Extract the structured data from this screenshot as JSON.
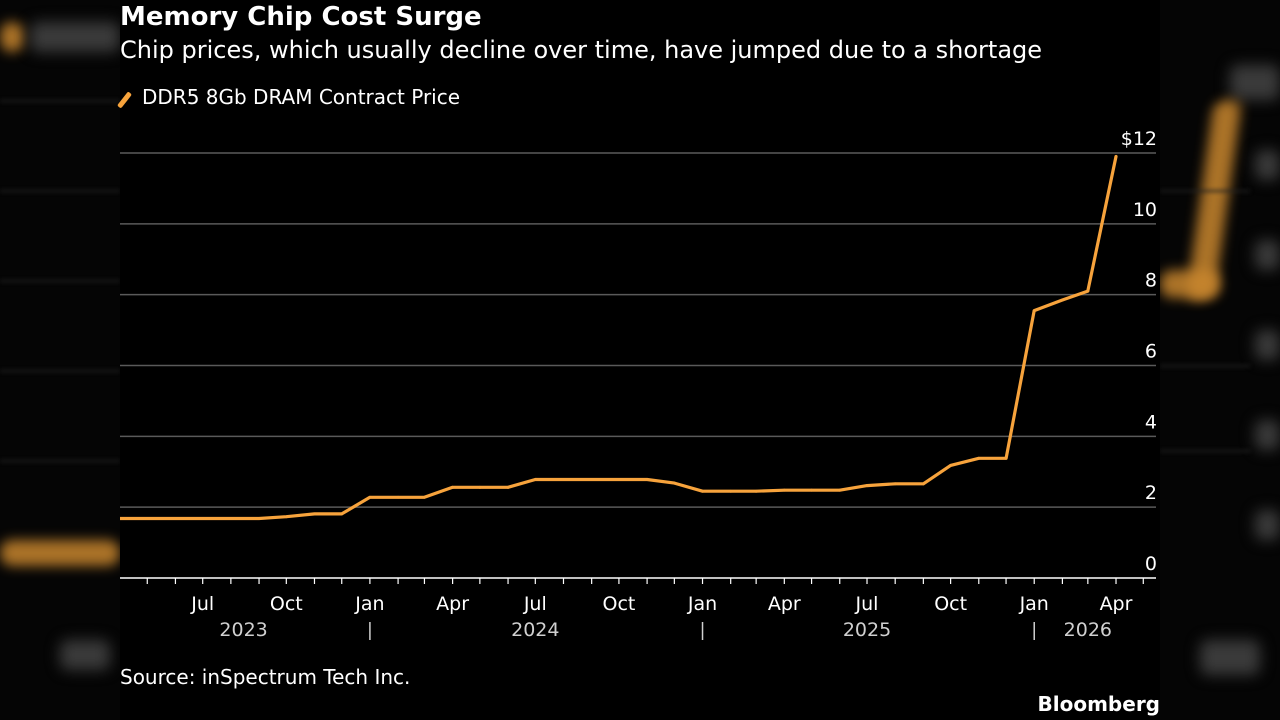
{
  "chart_data": {
    "type": "line",
    "title": "Memory Chip Cost Surge",
    "subtitle": "Chip prices, which usually decline over time, have jumped due to a shortage",
    "source": "Source: inSpectrum Tech Inc.",
    "brand": "Bloomberg",
    "ylim": [
      0,
      12
    ],
    "y_ticks": [
      {
        "value": 12,
        "label": "$12"
      },
      {
        "value": 10,
        "label": "10"
      },
      {
        "value": 8,
        "label": "8"
      },
      {
        "value": 6,
        "label": "6"
      },
      {
        "value": 4,
        "label": "4"
      },
      {
        "value": 2,
        "label": "2"
      },
      {
        "value": 0,
        "label": "0"
      }
    ],
    "xlim": [
      "2023-04-01",
      "2026-05-15"
    ],
    "x_month_ticks": [
      {
        "date": "2023-07-01",
        "label": "Jul"
      },
      {
        "date": "2023-10-01",
        "label": "Oct"
      },
      {
        "date": "2024-01-01",
        "label": "Jan"
      },
      {
        "date": "2024-04-01",
        "label": "Apr"
      },
      {
        "date": "2024-07-01",
        "label": "Jul"
      },
      {
        "date": "2024-10-01",
        "label": "Oct"
      },
      {
        "date": "2025-01-01",
        "label": "Jan"
      },
      {
        "date": "2025-04-01",
        "label": "Apr"
      },
      {
        "date": "2025-07-01",
        "label": "Jul"
      },
      {
        "date": "2025-10-01",
        "label": "Oct"
      },
      {
        "date": "2026-01-01",
        "label": "Jan"
      },
      {
        "date": "2026-04-01",
        "label": "Apr"
      }
    ],
    "x_year_labels": [
      {
        "date": "2023-08-15",
        "label": "2023"
      },
      {
        "date": "2024-07-01",
        "label": "2024"
      },
      {
        "date": "2025-07-01",
        "label": "2025"
      },
      {
        "date": "2026-03-01",
        "label": "2026"
      }
    ],
    "year_separators": [
      "2024-01-01",
      "2025-01-01",
      "2026-01-01"
    ],
    "grid": true,
    "legend_position": "top-left",
    "series": [
      {
        "name": "DDR5 8Gb DRAM Contract Price",
        "color": "#f7a33c",
        "points": [
          {
            "x": "2023-04-01",
            "y": 1.68
          },
          {
            "x": "2023-05-01",
            "y": 1.68
          },
          {
            "x": "2023-06-01",
            "y": 1.68
          },
          {
            "x": "2023-07-01",
            "y": 1.68
          },
          {
            "x": "2023-08-01",
            "y": 1.68
          },
          {
            "x": "2023-09-01",
            "y": 1.68
          },
          {
            "x": "2023-10-01",
            "y": 1.73
          },
          {
            "x": "2023-11-01",
            "y": 1.81
          },
          {
            "x": "2023-12-01",
            "y": 1.81
          },
          {
            "x": "2024-01-01",
            "y": 2.28
          },
          {
            "x": "2024-02-01",
            "y": 2.28
          },
          {
            "x": "2024-03-01",
            "y": 2.28
          },
          {
            "x": "2024-04-01",
            "y": 2.56
          },
          {
            "x": "2024-05-01",
            "y": 2.56
          },
          {
            "x": "2024-06-01",
            "y": 2.56
          },
          {
            "x": "2024-07-01",
            "y": 2.78
          },
          {
            "x": "2024-08-01",
            "y": 2.78
          },
          {
            "x": "2024-09-01",
            "y": 2.78
          },
          {
            "x": "2024-10-01",
            "y": 2.78
          },
          {
            "x": "2024-11-01",
            "y": 2.78
          },
          {
            "x": "2024-12-01",
            "y": 2.68
          },
          {
            "x": "2025-01-01",
            "y": 2.45
          },
          {
            "x": "2025-02-01",
            "y": 2.45
          },
          {
            "x": "2025-03-01",
            "y": 2.45
          },
          {
            "x": "2025-04-01",
            "y": 2.48
          },
          {
            "x": "2025-05-01",
            "y": 2.48
          },
          {
            "x": "2025-06-01",
            "y": 2.48
          },
          {
            "x": "2025-07-01",
            "y": 2.61
          },
          {
            "x": "2025-08-01",
            "y": 2.66
          },
          {
            "x": "2025-09-01",
            "y": 2.66
          },
          {
            "x": "2025-10-01",
            "y": 3.18
          },
          {
            "x": "2025-11-01",
            "y": 3.38
          },
          {
            "x": "2025-12-01",
            "y": 3.38
          },
          {
            "x": "2026-01-01",
            "y": 7.55
          },
          {
            "x": "2026-02-01",
            "y": 7.85
          },
          {
            "x": "2026-03-01",
            "y": 8.1
          },
          {
            "x": "2026-04-01",
            "y": 11.9
          }
        ]
      }
    ]
  }
}
